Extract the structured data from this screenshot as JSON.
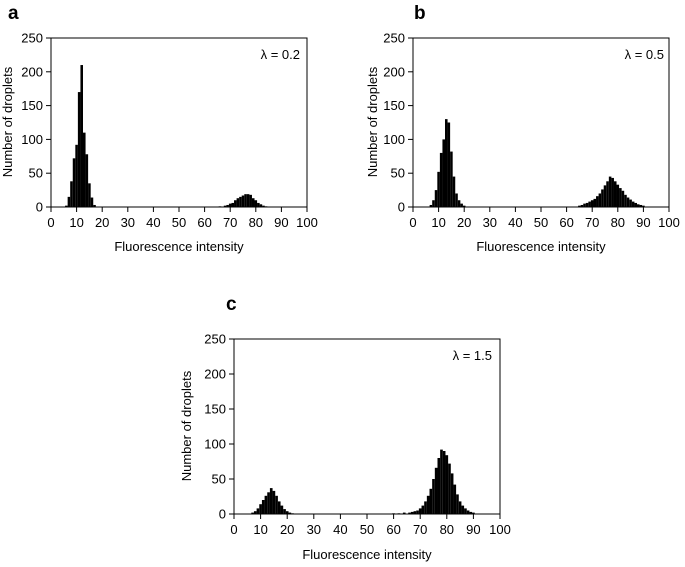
{
  "chart_data": [
    {
      "type": "bar",
      "panel": "a",
      "annotation": "λ = 0.2",
      "xlabel": "Fluorescence intensity",
      "ylabel": "Number of droplets",
      "xlim": [
        0,
        100
      ],
      "ylim": [
        0,
        250
      ],
      "xticks": [
        "0",
        "10",
        "20",
        "30",
        "40",
        "50",
        "60",
        "70",
        "80",
        "90",
        "100"
      ],
      "yticks": [
        "0",
        "50",
        "100",
        "150",
        "200",
        "250"
      ],
      "bin_width": 1,
      "x": [
        6,
        7,
        8,
        9,
        10,
        11,
        12,
        13,
        14,
        15,
        16,
        17,
        66,
        68,
        69,
        70,
        71,
        72,
        73,
        74,
        75,
        76,
        77,
        78,
        79,
        80,
        81,
        82,
        83,
        84
      ],
      "values": [
        2,
        15,
        38,
        72,
        92,
        170,
        210,
        110,
        78,
        35,
        14,
        3,
        1,
        2,
        3,
        5,
        6,
        10,
        13,
        15,
        17,
        19,
        19,
        18,
        13,
        10,
        6,
        4,
        2,
        1
      ]
    },
    {
      "type": "bar",
      "panel": "b",
      "annotation": "λ = 0.5",
      "xlabel": "Fluorescence intensity",
      "ylabel": "Number of droplets",
      "xlim": [
        0,
        100
      ],
      "ylim": [
        0,
        250
      ],
      "xticks": [
        "0",
        "10",
        "20",
        "30",
        "40",
        "50",
        "60",
        "70",
        "80",
        "90",
        "100"
      ],
      "yticks": [
        "0",
        "50",
        "100",
        "150",
        "200",
        "250"
      ],
      "bin_width": 1,
      "x": [
        7,
        8,
        9,
        10,
        11,
        12,
        13,
        14,
        15,
        16,
        17,
        18,
        19,
        20,
        65,
        66,
        67,
        68,
        69,
        70,
        71,
        72,
        73,
        74,
        75,
        76,
        77,
        78,
        79,
        80,
        81,
        82,
        83,
        84,
        85,
        86,
        87,
        88,
        89,
        90
      ],
      "values": [
        3,
        10,
        25,
        52,
        80,
        100,
        130,
        125,
        82,
        45,
        20,
        10,
        5,
        2,
        2,
        3,
        5,
        6,
        8,
        10,
        12,
        16,
        20,
        26,
        32,
        38,
        45,
        43,
        38,
        33,
        28,
        24,
        18,
        14,
        11,
        8,
        6,
        4,
        3,
        2
      ]
    },
    {
      "type": "bar",
      "panel": "c",
      "annotation": "λ = 1.5",
      "xlabel": "Fluorescence intensity",
      "ylabel": "Number of droplets",
      "xlim": [
        0,
        100
      ],
      "ylim": [
        0,
        250
      ],
      "xticks": [
        "0",
        "10",
        "20",
        "30",
        "40",
        "50",
        "60",
        "70",
        "80",
        "90",
        "100"
      ],
      "yticks": [
        "0",
        "50",
        "100",
        "150",
        "200",
        "250"
      ],
      "bin_width": 1,
      "x": [
        7,
        8,
        9,
        10,
        11,
        12,
        13,
        14,
        15,
        16,
        17,
        18,
        19,
        20,
        21,
        22,
        60,
        62,
        64,
        66,
        67,
        68,
        69,
        70,
        71,
        72,
        73,
        74,
        75,
        76,
        77,
        78,
        79,
        80,
        81,
        82,
        83,
        84,
        85,
        86,
        87,
        88,
        89,
        90
      ],
      "values": [
        2,
        4,
        8,
        14,
        20,
        26,
        31,
        37,
        33,
        26,
        18,
        12,
        7,
        4,
        2,
        1,
        1,
        1,
        2,
        2,
        3,
        4,
        5,
        8,
        12,
        18,
        26,
        36,
        50,
        66,
        80,
        92,
        90,
        84,
        72,
        58,
        42,
        28,
        18,
        12,
        8,
        5,
        3,
        2
      ]
    }
  ]
}
